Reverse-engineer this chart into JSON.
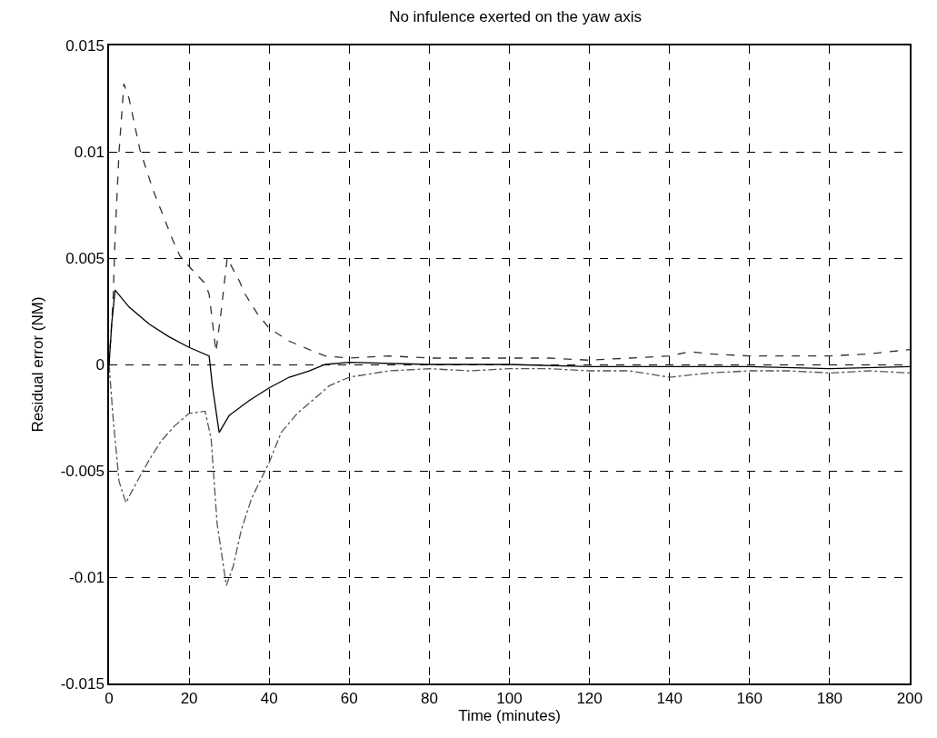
{
  "chart_data": {
    "type": "line",
    "title": "No infulence exerted on the yaw axis",
    "xlabel": "Time (minutes)",
    "ylabel": "Residual error (NM)",
    "xlim": [
      0,
      200
    ],
    "xticks": [
      0,
      20,
      40,
      60,
      80,
      100,
      120,
      140,
      160,
      180,
      200
    ],
    "ylim": [
      -0.015,
      0.015
    ],
    "yticks": [
      -0.015,
      -0.01,
      -0.005,
      0,
      0.005,
      0.01,
      0.015
    ],
    "grid": true,
    "marker": "none",
    "series": [
      {
        "color": "#333333",
        "line_style": "dashed",
        "x": [
          0,
          1,
          1.5,
          2.5,
          3.7,
          5,
          7.7,
          11,
          15.8,
          17.7,
          21,
          24,
          25,
          26.7,
          28,
          29.5,
          32.6,
          34,
          37,
          40,
          45,
          50,
          54,
          60,
          70,
          80,
          90,
          100,
          110,
          120,
          130,
          140,
          145,
          150,
          160,
          170,
          180,
          190,
          200
        ],
        "values": [
          0,
          0.003,
          0.006,
          0.01,
          0.0132,
          0.0125,
          0.0101,
          0.0082,
          0.0059,
          0.0051,
          0.0044,
          0.0038,
          0.0033,
          0.0006,
          0.0025,
          0.005,
          0.0039,
          0.0033,
          0.0024,
          0.0017,
          0.0011,
          0.0007,
          0.0004,
          0.0003,
          0.0004,
          0.0003,
          0.0003,
          0.0003,
          0.0003,
          0.0002,
          0.0003,
          0.0004,
          0.0006,
          0.0005,
          0.0004,
          0.0004,
          0.0004,
          0.0005,
          0.0007
        ]
      },
      {
        "color": "#000000",
        "line_style": "solid",
        "x": [
          0,
          0.7,
          1.5,
          5,
          10,
          15,
          20,
          25,
          25.8,
          27.5,
          30,
          35,
          40,
          45,
          50,
          54,
          60,
          80,
          100,
          120,
          140,
          160,
          180,
          200
        ],
        "values": [
          0,
          0.002,
          0.0035,
          0.0027,
          0.0019,
          0.0013,
          0.0008,
          0.0004,
          -0.001,
          -0.0032,
          -0.0024,
          -0.0017,
          -0.0011,
          -0.0006,
          -0.0003,
          0,
          0.0001,
          0,
          0,
          -0.0001,
          -0.0001,
          -0.0001,
          -0.0002,
          -0.0001
        ]
      },
      {
        "color": "#555555",
        "line_style": "dashdot",
        "x": [
          0,
          1,
          2.5,
          4.2,
          7,
          10,
          13,
          16.3,
          20,
          24,
          25.5,
          27,
          29.3,
          31,
          33,
          35.6,
          40,
          43,
          47,
          51.4,
          55,
          60,
          70,
          80,
          90,
          100,
          110,
          120,
          130,
          140,
          145,
          150,
          160,
          170,
          180,
          190,
          200
        ],
        "values": [
          0,
          -0.0025,
          -0.0055,
          -0.0065,
          -0.0055,
          -0.0045,
          -0.0036,
          -0.0029,
          -0.0023,
          -0.0022,
          -0.0035,
          -0.0075,
          -0.0104,
          -0.0095,
          -0.0078,
          -0.0063,
          -0.0046,
          -0.0032,
          -0.0023,
          -0.0016,
          -0.001,
          -0.0006,
          -0.0003,
          -0.0002,
          -0.0003,
          -0.0002,
          -0.0002,
          -0.0003,
          -0.0003,
          -0.0006,
          -0.0005,
          -0.0004,
          -0.0003,
          -0.0003,
          -0.0004,
          -0.0003,
          -0.0004
        ]
      }
    ]
  }
}
